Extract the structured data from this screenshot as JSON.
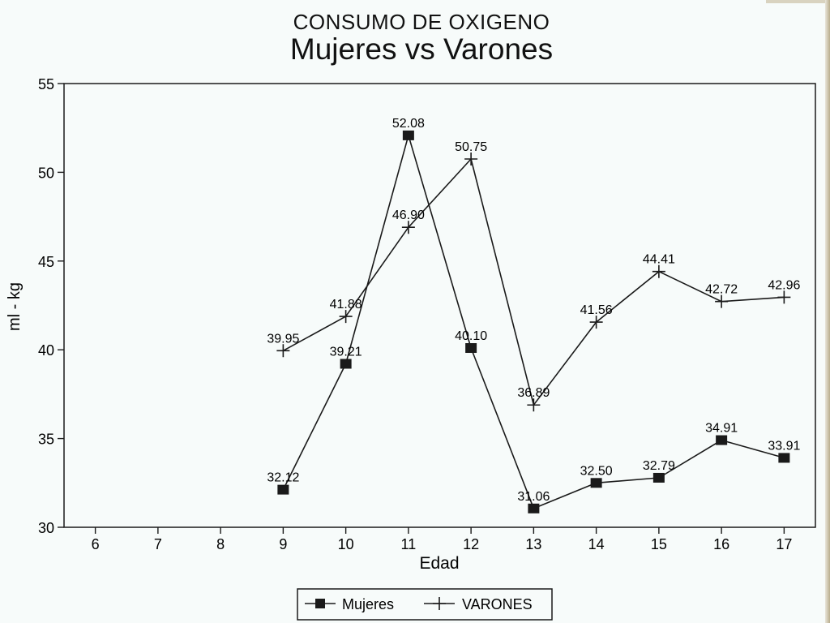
{
  "chart_data": {
    "type": "line",
    "title": "CONSUMO DE OXIGENO",
    "subtitle": "Mujeres vs Varones",
    "xlabel": "Edad",
    "ylabel": "ml - kg",
    "xlim": [
      5.5,
      17.5
    ],
    "ylim": [
      30,
      55
    ],
    "x_ticks": [
      "6",
      "7",
      "8",
      "9",
      "10",
      "11",
      "12",
      "13",
      "14",
      "15",
      "16",
      "17"
    ],
    "y_ticks": [
      "30",
      "35",
      "40",
      "45",
      "50",
      "55"
    ],
    "grid": false,
    "legend_position": "bottom",
    "series": [
      {
        "name": "Mujeres",
        "marker": "square",
        "x": [
          9,
          10,
          11,
          12,
          13,
          14,
          15,
          16,
          17
        ],
        "values": [
          32.12,
          39.21,
          52.08,
          40.1,
          31.06,
          32.5,
          32.79,
          34.91,
          33.91
        ],
        "labels": [
          "32.12",
          "39.21",
          "52.08",
          "40.10",
          "31.06",
          "32.50",
          "32.79",
          "34.91",
          "33.91"
        ]
      },
      {
        "name": "VARONES",
        "marker": "plus",
        "x": [
          9,
          10,
          11,
          12,
          13,
          14,
          15,
          16,
          17
        ],
        "values": [
          39.95,
          41.88,
          46.9,
          50.75,
          36.89,
          41.56,
          44.41,
          42.72,
          42.96
        ],
        "labels": [
          "39.95",
          "41.88",
          "46.90",
          "50.75",
          "36.89",
          "41.56",
          "44.41",
          "42.72",
          "42.96"
        ]
      }
    ]
  },
  "colors": {
    "line": "#1a1a1a",
    "background": "#f7fbfa"
  }
}
